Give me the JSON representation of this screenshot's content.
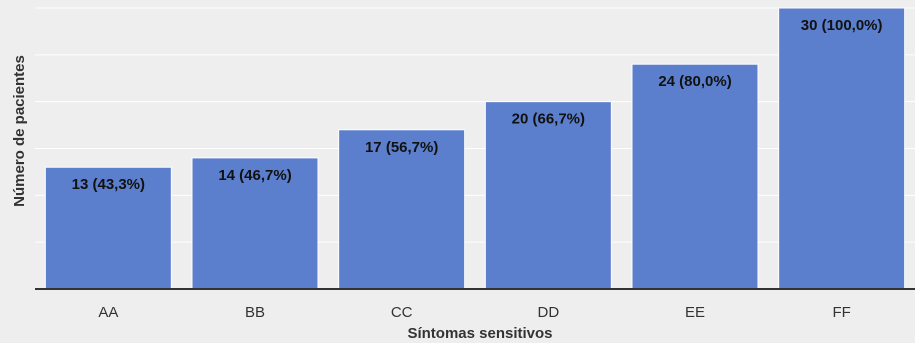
{
  "chart_data": {
    "type": "bar",
    "title": "",
    "xlabel": "Síntomas sensitivos",
    "ylabel": "Número de pacientes",
    "categories": [
      "AA",
      "BB",
      "CC",
      "DD",
      "EE",
      "FF"
    ],
    "values": [
      13,
      14,
      17,
      20,
      24,
      30
    ],
    "data_labels": [
      "13 (43,3%)",
      "14 (46,7%)",
      "17 (56,7%)",
      "20 (66,7%)",
      "24 (80,0%)",
      "30 (100,0%)"
    ],
    "ylim": [
      0,
      30
    ],
    "y_gridlines": [
      5,
      10,
      15,
      20,
      25,
      30
    ],
    "grid": true,
    "y_tick_labels_visible": false,
    "colors": {
      "bar": "#5b7fcc",
      "background": "#eeeeee",
      "gridline": "#ffffff",
      "axis": "#333333"
    }
  }
}
